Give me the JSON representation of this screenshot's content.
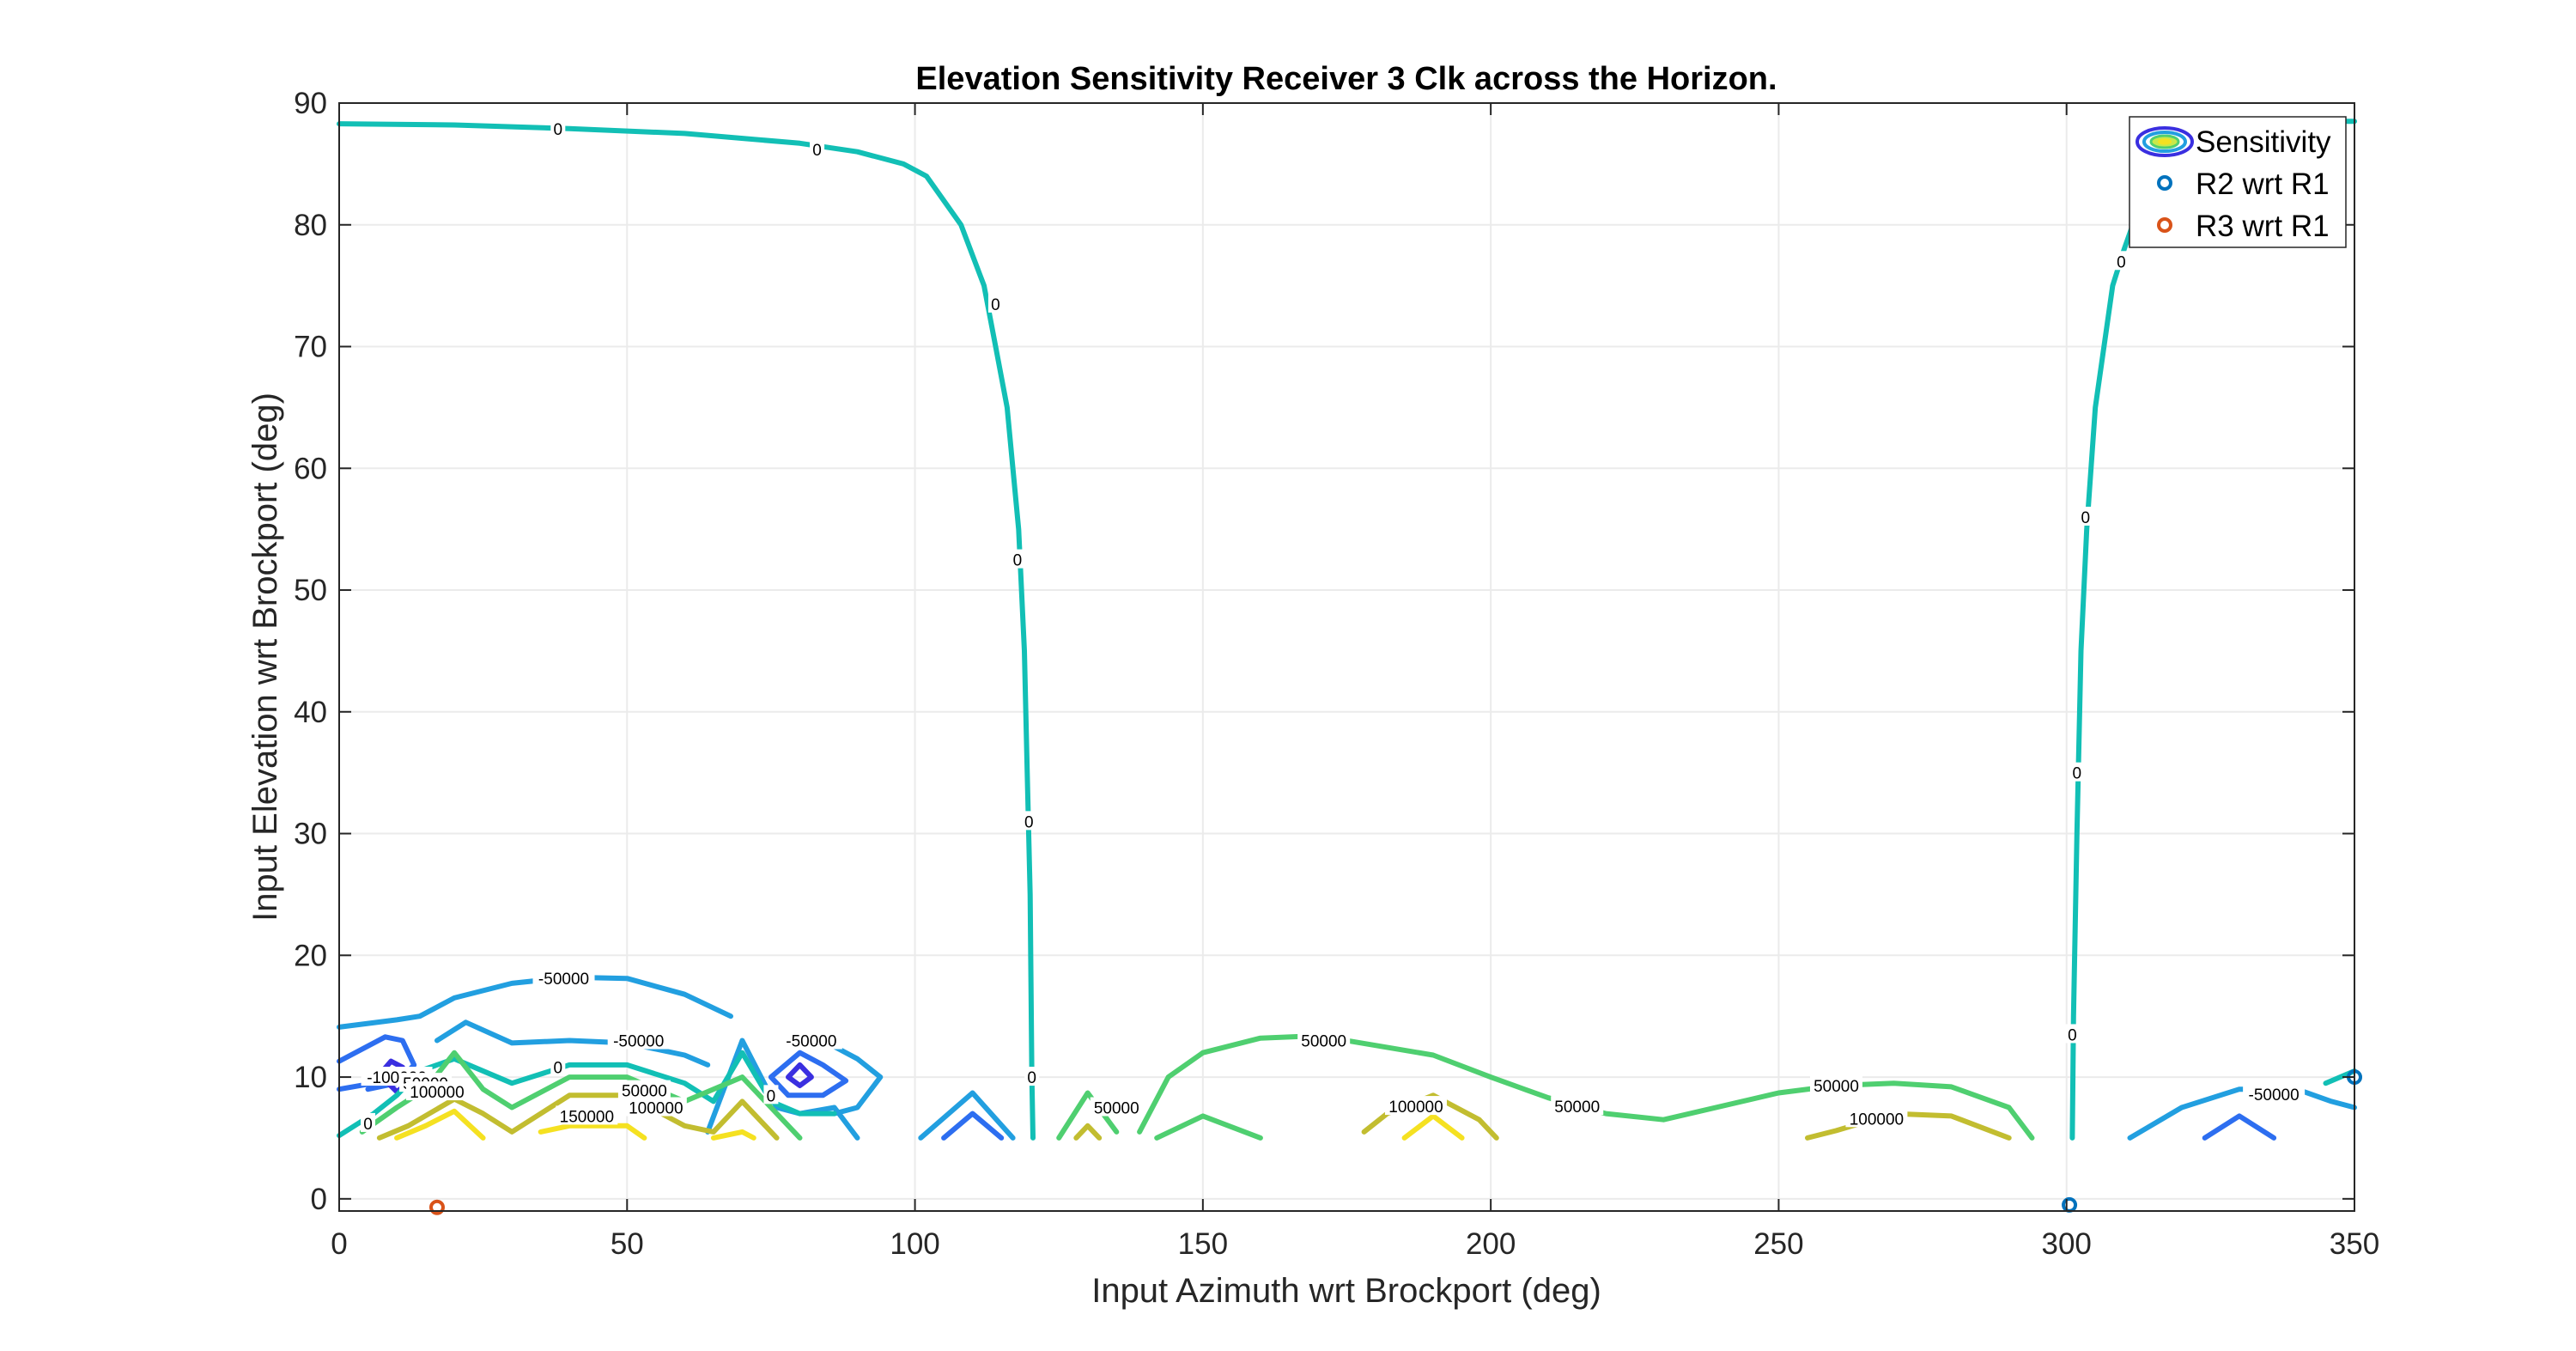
{
  "chart_data": {
    "type": "contour",
    "title": "Elevation Sensitivity Receiver 3 Clk across the Horizon.",
    "xlabel": "Input Azimuth wrt Brockport (deg)",
    "ylabel": "Input Elevation wrt Brockport (deg)",
    "xlim": [
      0,
      350
    ],
    "ylim": [
      -1,
      90
    ],
    "xticks": [
      0,
      50,
      100,
      150,
      200,
      250,
      300,
      350
    ],
    "yticks": [
      0,
      10,
      20,
      30,
      40,
      50,
      60,
      70,
      80,
      90
    ],
    "grid": true,
    "legend_position": "top-right",
    "legend": [
      {
        "name": "Sensitivity",
        "kind": "contour"
      },
      {
        "name": "R2 wrt R1",
        "kind": "marker",
        "color": "#0072bd"
      },
      {
        "name": "R3 wrt R1",
        "kind": "marker",
        "color": "#d95319"
      }
    ],
    "levels": [
      {
        "level": -150000,
        "color": "#3a2fe0"
      },
      {
        "level": -100000,
        "color": "#2d6ef0"
      },
      {
        "level": -50000,
        "color": "#229fe0"
      },
      {
        "level": 0,
        "color": "#12bfb5"
      },
      {
        "level": 50000,
        "color": "#4fcf70"
      },
      {
        "level": 100000,
        "color": "#c2bd30"
      },
      {
        "level": 150000,
        "color": "#f5e121"
      }
    ],
    "contours": [
      {
        "level": 0,
        "points": [
          [
            0,
            88.3
          ],
          [
            20,
            88.2
          ],
          [
            40,
            87.9
          ],
          [
            60,
            87.5
          ],
          [
            80,
            86.7
          ],
          [
            90,
            86
          ],
          [
            98,
            85
          ],
          [
            102,
            84
          ],
          [
            108,
            80
          ],
          [
            112,
            75
          ],
          [
            114,
            70
          ],
          [
            116,
            65
          ],
          [
            117,
            60
          ],
          [
            118,
            55
          ],
          [
            119,
            45
          ],
          [
            119.5,
            35
          ],
          [
            120,
            25
          ],
          [
            120.3,
            10
          ],
          [
            120.5,
            5
          ]
        ]
      },
      {
        "level": 0,
        "points": [
          [
            301,
            5
          ],
          [
            301.2,
            15
          ],
          [
            301.8,
            30
          ],
          [
            302.5,
            45
          ],
          [
            303.5,
            55
          ],
          [
            305,
            65
          ],
          [
            306.5,
            70
          ],
          [
            308,
            75
          ],
          [
            310,
            78
          ],
          [
            313,
            82
          ],
          [
            318,
            85
          ],
          [
            325,
            87
          ],
          [
            335,
            88
          ],
          [
            345,
            88.5
          ],
          [
            350,
            88.5
          ]
        ]
      },
      {
        "level": -50000,
        "points": [
          [
            0,
            14.1
          ],
          [
            10,
            14.7
          ],
          [
            14,
            15
          ],
          [
            20,
            16.5
          ],
          [
            30,
            17.7
          ],
          [
            40,
            18.2
          ],
          [
            50,
            18.1
          ],
          [
            60,
            16.8
          ],
          [
            68,
            15
          ]
        ]
      },
      {
        "level": -50000,
        "points": [
          [
            17,
            13
          ],
          [
            22,
            14.5
          ],
          [
            30,
            12.8
          ],
          [
            40,
            13
          ],
          [
            50,
            12.8
          ],
          [
            60,
            11.8
          ],
          [
            64,
            11
          ]
        ]
      },
      {
        "level": -50000,
        "points": [
          [
            64,
            5.5
          ],
          [
            70,
            13
          ],
          [
            76,
            7.5
          ],
          [
            80,
            7
          ],
          [
            86,
            7.5
          ],
          [
            90,
            5
          ]
        ]
      },
      {
        "level": -50000,
        "points": [
          [
            80,
            13
          ],
          [
            86,
            12.5
          ],
          [
            90,
            11.5
          ],
          [
            94,
            10
          ],
          [
            90,
            7.5
          ],
          [
            86,
            7
          ]
        ]
      },
      {
        "level": -50000,
        "points": [
          [
            101,
            5
          ],
          [
            110,
            8.7
          ],
          [
            117,
            5
          ]
        ]
      },
      {
        "level": -50000,
        "points": [
          [
            311,
            5
          ],
          [
            320,
            7.5
          ],
          [
            330,
            9
          ],
          [
            340,
            9
          ],
          [
            346,
            8
          ],
          [
            350,
            7.5
          ]
        ]
      },
      {
        "level": -100000,
        "points": [
          [
            0,
            11.3
          ],
          [
            8,
            13.3
          ],
          [
            11,
            13
          ],
          [
            13,
            11
          ],
          [
            10,
            9.5
          ],
          [
            5,
            9
          ]
        ]
      },
      {
        "level": -100000,
        "points": [
          [
            0,
            9
          ],
          [
            6,
            9.5
          ]
        ]
      },
      {
        "level": -100000,
        "points": [
          [
            75,
            10
          ],
          [
            80,
            12
          ],
          [
            84,
            11
          ],
          [
            88,
            9.7
          ],
          [
            84,
            8.5
          ],
          [
            78,
            8.5
          ],
          [
            75,
            10
          ]
        ]
      },
      {
        "level": -100000,
        "points": [
          [
            105,
            5
          ],
          [
            110,
            7
          ],
          [
            115,
            5
          ]
        ]
      },
      {
        "level": -100000,
        "points": [
          [
            324,
            5
          ],
          [
            330,
            6.8
          ],
          [
            336,
            5
          ]
        ]
      },
      {
        "level": -150000,
        "points": [
          [
            7,
            10.2
          ],
          [
            9,
            11.3
          ],
          [
            11,
            10.8
          ],
          [
            12,
            9.5
          ],
          [
            10,
            8.8
          ],
          [
            7,
            10.2
          ]
        ]
      },
      {
        "level": -150000,
        "points": [
          [
            78,
            10
          ],
          [
            80,
            11
          ],
          [
            82,
            10
          ],
          [
            80,
            9.3
          ],
          [
            78,
            10
          ]
        ]
      },
      {
        "level": 0,
        "points": [
          [
            0,
            5.2
          ],
          [
            6,
            7
          ],
          [
            10,
            8.5
          ],
          [
            14,
            10.5
          ],
          [
            20,
            11.5
          ],
          [
            30,
            9.5
          ],
          [
            40,
            11
          ],
          [
            50,
            11
          ],
          [
            60,
            9.5
          ],
          [
            65,
            8
          ],
          [
            70,
            12
          ],
          [
            75,
            8
          ],
          [
            80,
            7
          ],
          [
            86,
            7
          ]
        ]
      },
      {
        "level": 0,
        "points": [
          [
            345,
            9.5
          ],
          [
            350,
            10.5
          ]
        ]
      },
      {
        "level": 50000,
        "points": [
          [
            4,
            5.5
          ],
          [
            10,
            7.5
          ],
          [
            15,
            9
          ],
          [
            20,
            12
          ],
          [
            25,
            9
          ],
          [
            30,
            7.5
          ],
          [
            40,
            10
          ],
          [
            50,
            10
          ],
          [
            60,
            8
          ],
          [
            70,
            10
          ],
          [
            80,
            5
          ]
        ]
      },
      {
        "level": 50000,
        "points": [
          [
            125,
            5
          ],
          [
            130,
            8.7
          ],
          [
            135,
            5.5
          ]
        ]
      },
      {
        "level": 50000,
        "points": [
          [
            139,
            5.5
          ],
          [
            144,
            10
          ],
          [
            150,
            12
          ],
          [
            160,
            13.2
          ],
          [
            170,
            13.4
          ],
          [
            190,
            11.8
          ],
          [
            200,
            10
          ],
          [
            210,
            8.3
          ],
          [
            220,
            7
          ],
          [
            230,
            6.5
          ],
          [
            250,
            8.7
          ],
          [
            260,
            9.3
          ],
          [
            270,
            9.5
          ],
          [
            280,
            9.2
          ],
          [
            290,
            7.5
          ],
          [
            294,
            5
          ]
        ]
      },
      {
        "level": 50000,
        "points": [
          [
            142,
            5
          ],
          [
            150,
            6.8
          ],
          [
            160,
            5
          ]
        ]
      },
      {
        "level": 100000,
        "points": [
          [
            7,
            5
          ],
          [
            12,
            6
          ],
          [
            20,
            8.2
          ],
          [
            25,
            7
          ],
          [
            30,
            5.5
          ],
          [
            40,
            8.5
          ],
          [
            50,
            8.5
          ],
          [
            56,
            7
          ],
          [
            60,
            6
          ],
          [
            65,
            5.5
          ],
          [
            70,
            8
          ],
          [
            76,
            5
          ]
        ]
      },
      {
        "level": 100000,
        "points": [
          [
            128,
            5
          ],
          [
            130,
            6
          ],
          [
            132,
            5
          ]
        ]
      },
      {
        "level": 100000,
        "points": [
          [
            178,
            5.5
          ],
          [
            182,
            7
          ],
          [
            190,
            8.5
          ],
          [
            198,
            6.5
          ],
          [
            201,
            5
          ]
        ]
      },
      {
        "level": 100000,
        "points": [
          [
            255,
            5
          ],
          [
            260,
            5.6
          ],
          [
            270,
            7
          ],
          [
            280,
            6.8
          ],
          [
            290,
            5
          ]
        ]
      },
      {
        "level": 150000,
        "points": [
          [
            10,
            5
          ],
          [
            15,
            6
          ],
          [
            20,
            7.2
          ],
          [
            25,
            5
          ]
        ]
      },
      {
        "level": 150000,
        "points": [
          [
            35,
            5.5
          ],
          [
            40,
            6
          ],
          [
            50,
            6
          ],
          [
            53,
            5
          ]
        ]
      },
      {
        "level": 150000,
        "points": [
          [
            65,
            5
          ],
          [
            70,
            5.5
          ],
          [
            72,
            5
          ]
        ]
      },
      {
        "level": 150000,
        "points": [
          [
            185,
            5
          ],
          [
            190,
            6.8
          ],
          [
            195,
            5
          ]
        ]
      }
    ],
    "contour_labels": [
      {
        "text": "0",
        "x": 38,
        "y": 87.9
      },
      {
        "text": "0",
        "x": 83,
        "y": 86.2
      },
      {
        "text": "0",
        "x": 114,
        "y": 73.5
      },
      {
        "text": "0",
        "x": 117.8,
        "y": 52.5
      },
      {
        "text": "0",
        "x": 119.8,
        "y": 31
      },
      {
        "text": "0",
        "x": 120.3,
        "y": 10
      },
      {
        "text": "0",
        "x": 309.5,
        "y": 77
      },
      {
        "text": "0",
        "x": 303.3,
        "y": 56
      },
      {
        "text": "0",
        "x": 301.8,
        "y": 35
      },
      {
        "text": "0",
        "x": 301,
        "y": 13.5
      },
      {
        "text": "0",
        "x": 38,
        "y": 10.8
      },
      {
        "text": "0",
        "x": 75,
        "y": 8.5
      },
      {
        "text": "0",
        "x": 5,
        "y": 6.2
      },
      {
        "text": "-50000",
        "x": 39,
        "y": 18.1
      },
      {
        "text": "-50000",
        "x": 52,
        "y": 13
      },
      {
        "text": "-50000",
        "x": 82,
        "y": 13
      },
      {
        "text": "-50000",
        "x": 336,
        "y": 8.6
      },
      {
        "text": "-100000",
        "x": 10,
        "y": 10
      },
      {
        "text": "50000",
        "x": 15,
        "y": 9.5
      },
      {
        "text": "50000",
        "x": 53,
        "y": 8.9
      },
      {
        "text": "50000",
        "x": 135,
        "y": 7.5
      },
      {
        "text": "50000",
        "x": 171,
        "y": 13
      },
      {
        "text": "50000",
        "x": 215,
        "y": 7.6
      },
      {
        "text": "50000",
        "x": 260,
        "y": 9.3
      },
      {
        "text": "100000",
        "x": 17,
        "y": 8.8
      },
      {
        "text": "100000",
        "x": 55,
        "y": 7.5
      },
      {
        "text": "100000",
        "x": 187,
        "y": 7.6
      },
      {
        "text": "100000",
        "x": 267,
        "y": 6.6
      },
      {
        "text": "150000",
        "x": 43,
        "y": 6.8
      }
    ],
    "markers": [
      {
        "name": "R2 wrt R1",
        "color": "#0072bd",
        "points": [
          [
            300.5,
            -0.5
          ],
          [
            350,
            10
          ]
        ]
      },
      {
        "name": "R3 wrt R1",
        "color": "#d95319",
        "points": [
          [
            17,
            -0.7
          ]
        ]
      }
    ]
  }
}
